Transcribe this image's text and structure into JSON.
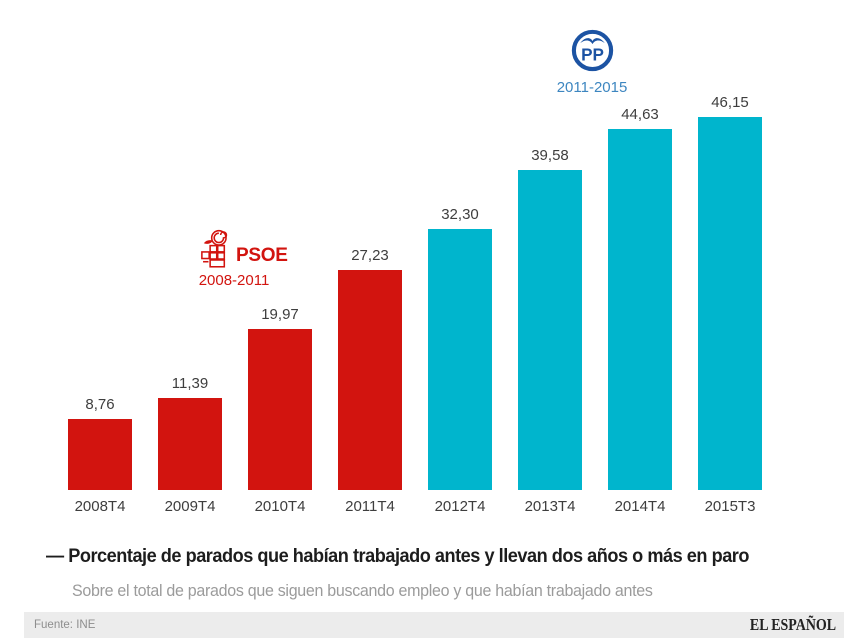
{
  "chart_data": {
    "type": "bar",
    "categories": [
      "2008T4",
      "2009T4",
      "2010T4",
      "2011T4",
      "2012T4",
      "2013T4",
      "2014T4",
      "2015T3"
    ],
    "values": [
      8.76,
      11.39,
      19.97,
      27.23,
      32.3,
      39.58,
      44.63,
      46.15
    ],
    "value_labels": [
      "8,76",
      "11,39",
      "19,97",
      "27,23",
      "32,30",
      "39,58",
      "44,63",
      "46,15"
    ],
    "bar_parties": [
      "psoe",
      "psoe",
      "psoe",
      "psoe",
      "pp",
      "pp",
      "pp",
      "pp"
    ],
    "ylim": [
      0,
      48
    ],
    "grid": false,
    "legend_position": "inline-above-bars",
    "title": "— Porcentaje de parados que habían trabajado antes y llevan dos años o más en paro",
    "subtitle": "Sobre el total de parados que siguen buscando empleo y que habían trabajado antes"
  },
  "legend": {
    "psoe": {
      "name": "PSOE",
      "period": "2008-2011"
    },
    "pp": {
      "name": "PP",
      "period": "2011-2015"
    }
  },
  "footer": {
    "source": "Fuente: INE",
    "brand": "EL ESPAÑOL"
  },
  "colors": {
    "psoe_red": "#d2140f",
    "pp_cyan": "#00b5cd",
    "pp_blue": "#1c53a3",
    "pp_period_text": "#3d86c0",
    "title": "#1d1d1d",
    "subtitle": "#9b9b9b",
    "label": "#3e3e3e",
    "footer_bg": "#ececec",
    "footer_text": "#8e8e8e",
    "brand": "#222222"
  }
}
